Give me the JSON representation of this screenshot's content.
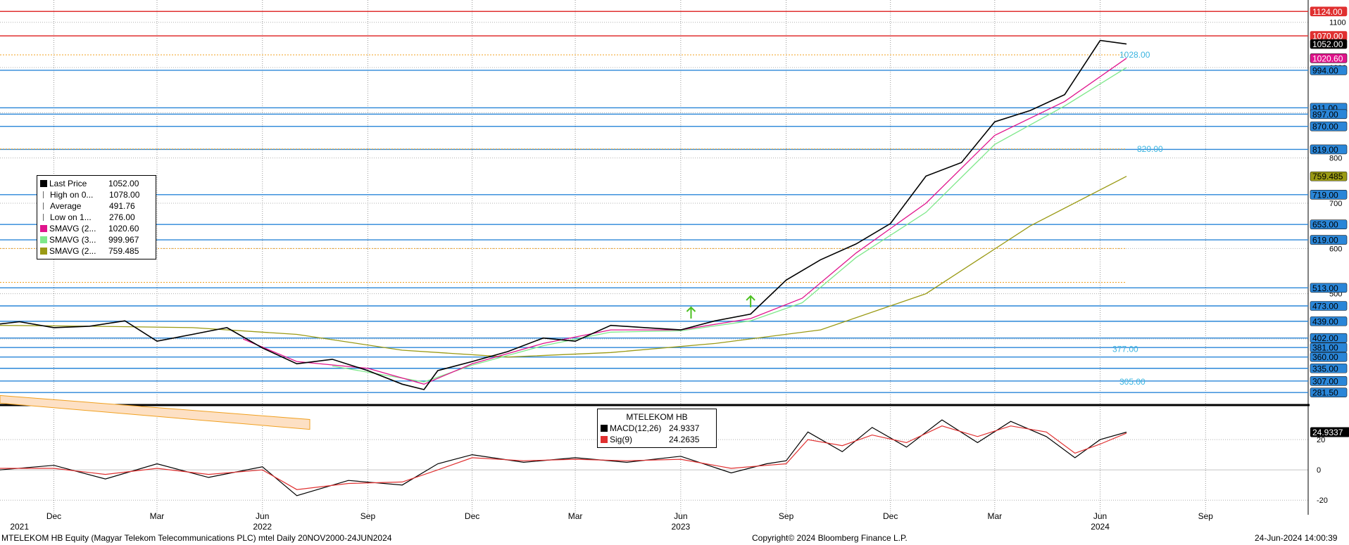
{
  "chart_data": [
    {
      "type": "line",
      "title": "",
      "ylim": [
        260,
        1140
      ],
      "y_ticks": [
        400,
        500,
        600,
        700,
        800,
        900,
        1000,
        1100
      ],
      "grid": true,
      "legend_position": "left",
      "legend": [
        {
          "name": "Last Price",
          "value": "1052.00",
          "color": "#000000",
          "icon": "square-icon"
        },
        {
          "name": "High on 0...",
          "value": "1078.00",
          "color": "#666666",
          "icon": "high-marker-icon"
        },
        {
          "name": "Average",
          "value": "491.76",
          "color": "#666666",
          "icon": "average-marker-icon"
        },
        {
          "name": "Low on 1...",
          "value": "276.00",
          "color": "#666666",
          "icon": "low-marker-icon"
        },
        {
          "name": "SMAVG (2...",
          "value": "1020.60",
          "color": "#e0148c"
        },
        {
          "name": "SMAVG (3...",
          "value": "999.967",
          "color": "#7ee88a"
        },
        {
          "name": "SMAVG (2...",
          "value": "759.485",
          "color": "#9a9a14"
        }
      ],
      "series": [
        {
          "name": "Last Price",
          "color": "#000000",
          "x": [
            "2021-10-15",
            "2021-11-01",
            "2021-12-01",
            "2022-01-01",
            "2022-02-01",
            "2022-03-01",
            "2022-04-01",
            "2022-05-01",
            "2022-06-01",
            "2022-07-01",
            "2022-08-01",
            "2022-09-01",
            "2022-10-01",
            "2022-10-20",
            "2022-11-01",
            "2022-12-01",
            "2023-01-01",
            "2023-02-01",
            "2023-03-01",
            "2023-04-01",
            "2023-05-01",
            "2023-06-01",
            "2023-07-01",
            "2023-08-01",
            "2023-09-01",
            "2023-10-01",
            "2023-11-01",
            "2023-12-01",
            "2024-01-01",
            "2024-02-01",
            "2024-03-01",
            "2024-04-01",
            "2024-05-01",
            "2024-06-01",
            "2024-06-24"
          ],
          "values": [
            433,
            438,
            425,
            428,
            440,
            395,
            410,
            425,
            380,
            345,
            355,
            330,
            300,
            288,
            330,
            350,
            372,
            402,
            395,
            430,
            425,
            420,
            440,
            455,
            530,
            575,
            610,
            655,
            760,
            790,
            880,
            905,
            940,
            1060,
            1052
          ]
        },
        {
          "name": "SMAVG (2...",
          "color": "#e0148c",
          "x": [
            "2022-05-15",
            "2022-07-01",
            "2022-09-01",
            "2022-10-20",
            "2022-12-01",
            "2023-02-01",
            "2023-04-01",
            "2023-06-01",
            "2023-08-01",
            "2023-09-15",
            "2023-11-01",
            "2024-01-01",
            "2024-03-01",
            "2024-05-01",
            "2024-06-24"
          ],
          "values": [
            400,
            350,
            335,
            300,
            345,
            390,
            420,
            420,
            445,
            490,
            590,
            700,
            850,
            925,
            1020.6
          ]
        },
        {
          "name": "SMAVG (3...",
          "color": "#7ee88a",
          "x": [
            "2022-08-01",
            "2022-10-20",
            "2022-12-01",
            "2023-02-01",
            "2023-04-01",
            "2023-06-01",
            "2023-08-01",
            "2023-09-15",
            "2023-11-01",
            "2024-01-01",
            "2024-03-01",
            "2024-05-01",
            "2024-06-24"
          ],
          "values": [
            340,
            305,
            342,
            385,
            415,
            418,
            440,
            480,
            580,
            680,
            830,
            915,
            999.967
          ]
        },
        {
          "name": "SMAVG (2...",
          "color": "#9a9a14",
          "x": [
            "2021-10-15",
            "2022-01-01",
            "2022-04-01",
            "2022-07-01",
            "2022-10-01",
            "2023-01-01",
            "2023-04-01",
            "2023-07-01",
            "2023-10-01",
            "2024-01-01",
            "2024-04-01",
            "2024-06-24"
          ],
          "values": [
            430,
            428,
            425,
            410,
            375,
            360,
            370,
            390,
            420,
            500,
            650,
            759.485
          ]
        }
      ],
      "horizontal_lines": [
        {
          "value": 1124.0,
          "label": "1124.00",
          "color": "#e03030"
        },
        {
          "value": 1070.0,
          "label": "1070.00",
          "color": "#e03030"
        },
        {
          "value": 1052.0,
          "label": "1052.00",
          "color": "#000000"
        },
        {
          "value": 1020.6,
          "label": "1020.60",
          "color": "#e0148c"
        },
        {
          "value": 994.0,
          "label": "994.00",
          "color": "#2a86d8"
        },
        {
          "value": 911.0,
          "label": "911.00",
          "color": "#2a86d8"
        },
        {
          "value": 897.0,
          "label": "897.00",
          "color": "#2a86d8"
        },
        {
          "value": 870.0,
          "label": "870.00",
          "color": "#2a86d8"
        },
        {
          "value": 819.0,
          "label": "819.00",
          "color": "#2a86d8"
        },
        {
          "value": 759.485,
          "label": "759.485",
          "color": "#9a9a14"
        },
        {
          "value": 719.0,
          "label": "719.00",
          "color": "#2a86d8"
        },
        {
          "value": 653.0,
          "label": "653.00",
          "color": "#2a86d8"
        },
        {
          "value": 619.0,
          "label": "619.00",
          "color": "#2a86d8"
        },
        {
          "value": 513.0,
          "label": "513.00",
          "color": "#2a86d8"
        },
        {
          "value": 473.0,
          "label": "473.00",
          "color": "#2a86d8"
        },
        {
          "value": 439.0,
          "label": "439.00",
          "color": "#2a86d8"
        },
        {
          "value": 402.0,
          "label": "402.00",
          "color": "#2a86d8"
        },
        {
          "value": 381.0,
          "label": "381.00",
          "color": "#2a86d8"
        },
        {
          "value": 360.0,
          "label": "360.00",
          "color": "#2a86d8"
        },
        {
          "value": 335.0,
          "label": "335.00",
          "color": "#2a86d8"
        },
        {
          "value": 307.0,
          "label": "307.00",
          "color": "#2a86d8"
        },
        {
          "value": 281.5,
          "label": "281.50",
          "color": "#2a86d8"
        }
      ],
      "annotations": [
        "1028.00",
        "820.00",
        "377.00",
        "305.00"
      ]
    },
    {
      "type": "line",
      "title": "MTELEKOM HB",
      "ylim": [
        -25,
        40
      ],
      "y_ticks": [
        -20,
        0,
        20
      ],
      "legend": [
        {
          "name": "MACD(12,26)",
          "value": "24.9337",
          "color": "#000000"
        },
        {
          "name": "Sig(9)",
          "value": "24.2635",
          "color": "#e03030"
        }
      ],
      "last_value_label": "24.9337",
      "series": [
        {
          "name": "MACD(12,26)",
          "color": "#000000",
          "x": [
            "2021-10-15",
            "2021-12-01",
            "2022-01-15",
            "2022-03-01",
            "2022-04-15",
            "2022-06-01",
            "2022-07-01",
            "2022-08-15",
            "2022-10-01",
            "2022-11-01",
            "2022-12-01",
            "2023-01-15",
            "2023-03-01",
            "2023-04-15",
            "2023-06-01",
            "2023-07-15",
            "2023-08-15",
            "2023-09-01",
            "2023-09-20",
            "2023-10-20",
            "2023-11-15",
            "2023-12-15",
            "2024-01-15",
            "2024-02-15",
            "2024-03-15",
            "2024-04-15",
            "2024-05-10",
            "2024-06-01",
            "2024-06-24"
          ],
          "values": [
            0,
            3,
            -6,
            4,
            -5,
            2,
            -17,
            -7,
            -10,
            4,
            10,
            5,
            8,
            5,
            9,
            -2,
            4,
            6,
            25,
            12,
            28,
            15,
            33,
            18,
            32,
            22,
            8,
            20,
            24.9337
          ]
        },
        {
          "name": "Sig(9)",
          "color": "#e03030",
          "x": [
            "2021-10-15",
            "2021-12-01",
            "2022-01-15",
            "2022-03-01",
            "2022-04-15",
            "2022-06-01",
            "2022-07-01",
            "2022-08-15",
            "2022-10-01",
            "2022-11-01",
            "2022-12-01",
            "2023-01-15",
            "2023-03-01",
            "2023-04-15",
            "2023-06-01",
            "2023-07-15",
            "2023-08-15",
            "2023-09-01",
            "2023-09-20",
            "2023-10-20",
            "2023-11-15",
            "2023-12-15",
            "2024-01-15",
            "2024-02-15",
            "2024-03-15",
            "2024-04-15",
            "2024-05-10",
            "2024-06-01",
            "2024-06-24"
          ],
          "values": [
            1,
            1,
            -3,
            1,
            -3,
            0,
            -13,
            -9,
            -8,
            0,
            8,
            6,
            7,
            6,
            7,
            1,
            3,
            4,
            20,
            16,
            23,
            18,
            29,
            22,
            29,
            25,
            11,
            17,
            24.2635
          ]
        }
      ]
    }
  ],
  "x_axis": {
    "month_ticks": [
      {
        "date": "2021-12-01",
        "label": "Dec"
      },
      {
        "date": "2022-03-01",
        "label": "Mar"
      },
      {
        "date": "2022-06-01",
        "label": "Jun"
      },
      {
        "date": "2022-09-01",
        "label": "Sep"
      },
      {
        "date": "2022-12-01",
        "label": "Dec"
      },
      {
        "date": "2023-03-01",
        "label": "Mar"
      },
      {
        "date": "2023-06-01",
        "label": "Jun"
      },
      {
        "date": "2023-09-01",
        "label": "Sep"
      },
      {
        "date": "2023-12-01",
        "label": "Dec"
      },
      {
        "date": "2024-03-01",
        "label": "Mar"
      },
      {
        "date": "2024-06-01",
        "label": "Jun"
      },
      {
        "date": "2024-09-01",
        "label": "Sep"
      }
    ],
    "year_ticks": [
      {
        "date": "2021-11-01",
        "label": "2021"
      },
      {
        "date": "2022-06-01",
        "label": "2022"
      },
      {
        "date": "2023-06-01",
        "label": "2023"
      },
      {
        "date": "2024-06-01",
        "label": "2024"
      }
    ]
  },
  "footer": {
    "security": "MTELEKOM HB Equity (Magyar Telekom Telecommunications PLC) mtel  Daily 20NOV2000-24JUN2024",
    "copyright": "Copyright© 2024 Bloomberg Finance L.P.",
    "timestamp": "24-Jun-2024 14:00:39"
  }
}
